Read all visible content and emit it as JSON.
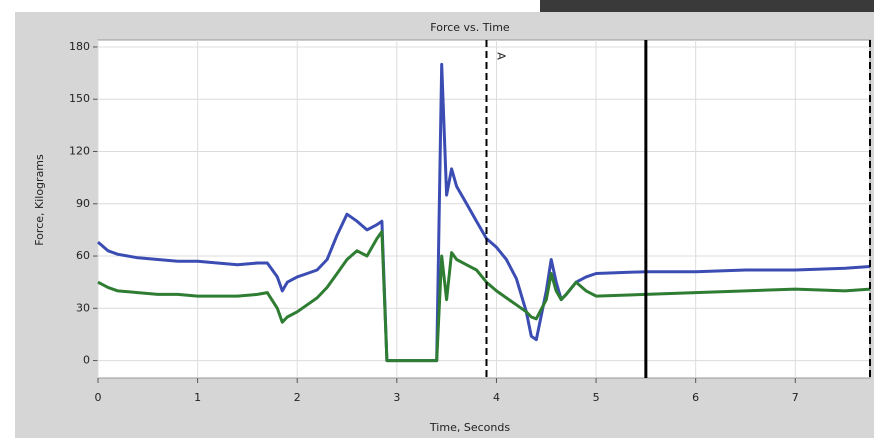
{
  "chart_data": {
    "type": "line",
    "title": "Force vs. Time",
    "x_label": "Time, Seconds",
    "y_label": "Force, Kilograms",
    "x": [
      0,
      0.1,
      0.2,
      0.4,
      0.6,
      0.8,
      1.0,
      1.2,
      1.4,
      1.6,
      1.7,
      1.8,
      1.85,
      1.9,
      2.0,
      2.1,
      2.2,
      2.3,
      2.4,
      2.5,
      2.6,
      2.7,
      2.8,
      2.85,
      2.9,
      3.4,
      3.45,
      3.5,
      3.55,
      3.6,
      3.7,
      3.8,
      3.9,
      4.0,
      4.1,
      4.2,
      4.3,
      4.35,
      4.4,
      4.5,
      4.55,
      4.6,
      4.65,
      4.7,
      4.8,
      4.9,
      5.0,
      5.5,
      6.0,
      6.5,
      7.0,
      7.5,
      7.75
    ],
    "series": [
      {
        "color": "#3b4db3",
        "values": [
          68,
          63,
          61,
          59,
          58,
          57,
          57,
          56,
          55,
          56,
          56,
          48,
          40,
          45,
          48,
          50,
          52,
          58,
          72,
          84,
          80,
          75,
          78,
          80,
          0,
          0,
          170,
          95,
          110,
          100,
          90,
          80,
          70,
          65,
          58,
          47,
          28,
          14,
          12,
          40,
          58,
          45,
          35,
          38,
          45,
          48,
          50,
          51,
          51,
          52,
          52,
          53,
          54
        ]
      },
      {
        "color": "#2e7d32",
        "values": [
          45,
          42,
          40,
          39,
          38,
          38,
          37,
          37,
          37,
          38,
          39,
          30,
          22,
          25,
          28,
          32,
          36,
          42,
          50,
          58,
          63,
          60,
          70,
          74,
          0,
          0,
          60,
          35,
          62,
          58,
          55,
          52,
          45,
          40,
          36,
          32,
          28,
          25,
          24,
          35,
          50,
          40,
          35,
          38,
          45,
          40,
          37,
          38,
          39,
          40,
          41,
          40,
          41
        ]
      }
    ],
    "markers": [
      {
        "x": 3.9,
        "label": "A",
        "style": "dashed"
      },
      {
        "x": 5.5,
        "style": "solid"
      },
      {
        "x": 7.75,
        "style": "dashed"
      }
    ],
    "xlim": [
      0,
      7.75
    ],
    "ylim": [
      -10,
      184
    ],
    "xticks": [
      0,
      1,
      2,
      3,
      4,
      5,
      6,
      7
    ],
    "yticks": [
      0,
      30,
      60,
      90,
      120,
      150,
      180
    ],
    "grid": true
  }
}
